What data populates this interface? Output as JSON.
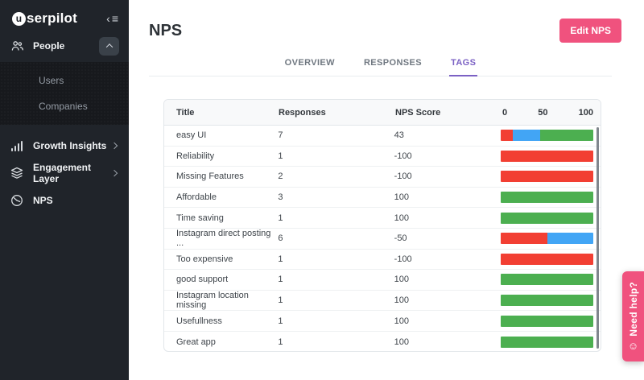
{
  "colors": {
    "sidebar_bg": "#20242a",
    "submenu_bg": "#17191d",
    "accent_pink": "#f0527e",
    "tab_active_purple": "#7b61c4",
    "detractor_red": "#f23f33",
    "passive_blue": "#42a5f5",
    "promoter_green": "#4caf50"
  },
  "sidebar": {
    "logo_initial": "u",
    "logo_rest": "serpilot",
    "items": [
      {
        "label": "People",
        "icon": "people-icon",
        "expanded": true
      },
      {
        "label": "Growth Insights",
        "icon": "bar-chart-icon"
      },
      {
        "label": "Engagement Layer",
        "icon": "layers-icon"
      },
      {
        "label": "NPS",
        "icon": "gauge-icon"
      }
    ],
    "subitems": [
      {
        "label": "Users"
      },
      {
        "label": "Companies"
      }
    ]
  },
  "header": {
    "title": "NPS",
    "edit_button_label": "Edit NPS"
  },
  "tabs": [
    {
      "label": "OVERVIEW",
      "active": false
    },
    {
      "label": "RESPONSES",
      "active": false
    },
    {
      "label": "TAGS",
      "active": true
    }
  ],
  "table": {
    "columns": {
      "title": "Title",
      "responses": "Responses",
      "score": "NPS Score"
    },
    "scale_labels": [
      "0",
      "50",
      "100"
    ],
    "rows": [
      {
        "title": "easy UI",
        "responses": "7",
        "score": "43",
        "bar": {
          "detractor_pct": 13,
          "passive_pct": 30,
          "promoter_pct": 57
        }
      },
      {
        "title": "Reliability",
        "responses": "1",
        "score": "-100",
        "bar": {
          "detractor_pct": 100,
          "passive_pct": 0,
          "promoter_pct": 0
        }
      },
      {
        "title": "Missing Features",
        "responses": "2",
        "score": "-100",
        "bar": {
          "detractor_pct": 100,
          "passive_pct": 0,
          "promoter_pct": 0
        }
      },
      {
        "title": "Affordable",
        "responses": "3",
        "score": "100",
        "bar": {
          "detractor_pct": 0,
          "passive_pct": 0,
          "promoter_pct": 100
        }
      },
      {
        "title": "Time saving",
        "responses": "1",
        "score": "100",
        "bar": {
          "detractor_pct": 0,
          "passive_pct": 0,
          "promoter_pct": 100
        }
      },
      {
        "title": "Instagram direct posting ...",
        "responses": "6",
        "score": "-50",
        "bar": {
          "detractor_pct": 50,
          "passive_pct": 50,
          "promoter_pct": 0
        }
      },
      {
        "title": "Too expensive",
        "responses": "1",
        "score": "-100",
        "bar": {
          "detractor_pct": 100,
          "passive_pct": 0,
          "promoter_pct": 0
        }
      },
      {
        "title": "good support",
        "responses": "1",
        "score": "100",
        "bar": {
          "detractor_pct": 0,
          "passive_pct": 0,
          "promoter_pct": 100
        }
      },
      {
        "title": "Instagram location missing",
        "responses": "1",
        "score": "100",
        "bar": {
          "detractor_pct": 0,
          "passive_pct": 0,
          "promoter_pct": 100
        }
      },
      {
        "title": "Usefullness",
        "responses": "1",
        "score": "100",
        "bar": {
          "detractor_pct": 0,
          "passive_pct": 0,
          "promoter_pct": 100
        }
      },
      {
        "title": "Great app",
        "responses": "1",
        "score": "100",
        "bar": {
          "detractor_pct": 0,
          "passive_pct": 0,
          "promoter_pct": 100
        }
      }
    ]
  },
  "help_button": {
    "label": "Need help?",
    "icon": "smiley-icon"
  }
}
